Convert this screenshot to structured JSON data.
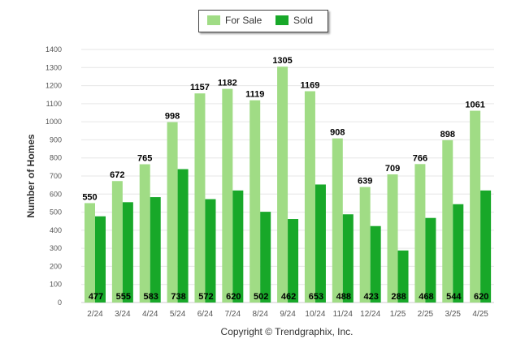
{
  "legend": {
    "for_sale_label": "For Sale",
    "sold_label": "Sold"
  },
  "footer": {
    "copyright": "Copyright © Trendgraphix, Inc."
  },
  "colors": {
    "for_sale": "#a0dc85",
    "sold": "#18a829",
    "grid": "#e6e6e6",
    "axis_text": "#555555"
  },
  "chart_data": {
    "type": "bar",
    "title": "",
    "xlabel": "",
    "ylabel": "Number of Homes",
    "ylim": [
      0,
      1400
    ],
    "yticks": [
      0,
      100,
      200,
      300,
      400,
      500,
      600,
      700,
      800,
      900,
      1000,
      1100,
      1200,
      1300,
      1400
    ],
    "grid": true,
    "legend_position": "top-center",
    "categories": [
      "2/24",
      "3/24",
      "4/24",
      "5/24",
      "6/24",
      "7/24",
      "8/24",
      "9/24",
      "10/24",
      "11/24",
      "12/24",
      "1/25",
      "2/25",
      "3/25",
      "4/25"
    ],
    "series": [
      {
        "name": "For Sale",
        "values": [
          550,
          672,
          765,
          998,
          1157,
          1182,
          1119,
          1305,
          1169,
          908,
          639,
          709,
          766,
          898,
          1061
        ]
      },
      {
        "name": "Sold",
        "values": [
          477,
          555,
          583,
          738,
          572,
          620,
          502,
          462,
          653,
          488,
          423,
          288,
          468,
          544,
          620
        ]
      }
    ]
  }
}
